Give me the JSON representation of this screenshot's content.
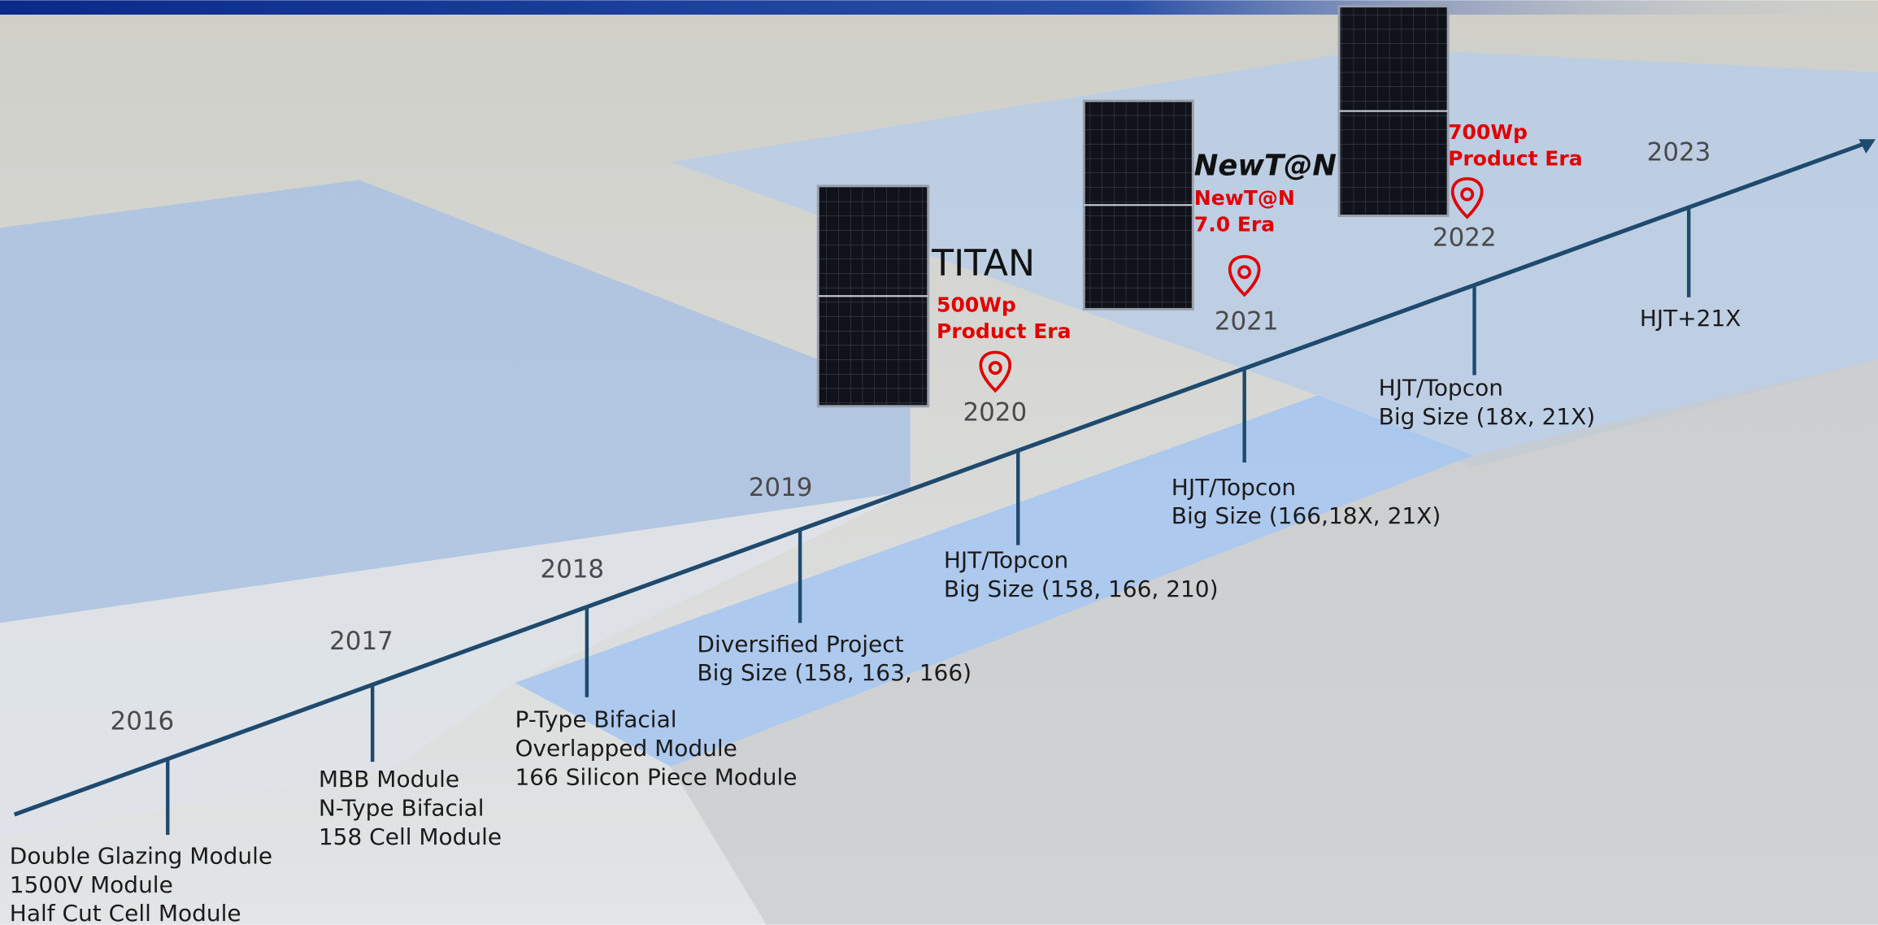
{
  "timeline": [
    {
      "year": "2016",
      "lines": [
        "Double Glazing Module",
        "1500V Module",
        "Half Cut Cell Module"
      ]
    },
    {
      "year": "2017",
      "lines": [
        "MBB Module",
        "N-Type Bifacial",
        "158 Cell Module"
      ]
    },
    {
      "year": "2018",
      "lines": [
        "P-Type Bifacial",
        "Overlapped Module",
        "166 Silicon Piece Module"
      ]
    },
    {
      "year": "2019",
      "lines": [
        "Diversified Project",
        "Big Size (158, 163, 166)"
      ]
    },
    {
      "year": "2020",
      "lines": [
        "HJT/Topcon",
        "Big Size (158, 166, 210)"
      ]
    },
    {
      "year": "2021",
      "lines": [
        "HJT/Topcon",
        "Big Size (166,18X, 21X)"
      ]
    },
    {
      "year": "2022",
      "lines": [
        "HJT/Topcon",
        "Big Size (18x, 21X)"
      ]
    },
    {
      "year": "2023",
      "lines": [
        "HJT+21X"
      ]
    }
  ],
  "products": [
    {
      "logo": "TITAN",
      "lines": [
        "500Wp",
        "Product Era"
      ]
    },
    {
      "logo": "NewT@N",
      "lines": [
        "NewT@N",
        "7.0 Era"
      ]
    },
    {
      "lines": [
        "700Wp",
        "Product Era"
      ]
    }
  ]
}
